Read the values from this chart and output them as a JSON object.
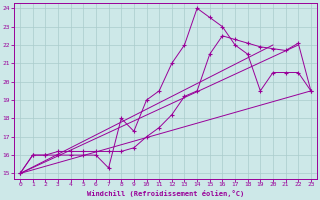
{
  "xlabel": "Windchill (Refroidissement éolien,°C)",
  "bg_color": "#cde8e8",
  "grid_color": "#aacccc",
  "line_color": "#990099",
  "xlim": [
    -0.5,
    23.5
  ],
  "ylim": [
    14.7,
    24.3
  ],
  "xticks": [
    0,
    1,
    2,
    3,
    4,
    5,
    6,
    7,
    8,
    9,
    10,
    11,
    12,
    13,
    14,
    15,
    16,
    17,
    18,
    19,
    20,
    21,
    22,
    23
  ],
  "yticks": [
    15,
    16,
    17,
    18,
    19,
    20,
    21,
    22,
    23,
    24
  ],
  "line1_x": [
    0,
    1,
    2,
    3,
    4,
    5,
    6,
    7,
    8,
    9,
    10,
    11,
    12,
    13,
    14,
    15,
    16,
    17,
    18,
    19,
    20,
    21,
    22,
    23
  ],
  "line1_y": [
    15,
    16,
    16,
    16,
    16,
    16,
    16,
    15.3,
    18,
    17.3,
    19,
    19.5,
    21,
    22,
    24,
    23.5,
    23,
    22,
    21.5,
    19.5,
    20.5,
    20.5,
    20.5,
    19.5
  ],
  "line2_x": [
    0,
    1,
    2,
    3,
    4,
    5,
    6,
    7,
    8,
    9,
    10,
    11,
    12,
    13,
    14,
    15,
    16,
    17,
    18,
    19,
    20,
    21,
    22,
    23
  ],
  "line2_y": [
    15,
    16,
    16,
    16.2,
    16.2,
    16.2,
    16.2,
    16.2,
    16.2,
    16.4,
    17,
    17.5,
    18.2,
    19.2,
    19.5,
    21.5,
    22.5,
    22.3,
    22.1,
    21.9,
    21.8,
    21.7,
    22.1,
    19.5
  ],
  "line3_x": [
    0,
    23
  ],
  "line3_y": [
    15,
    19.5
  ],
  "line4_x": [
    0,
    20
  ],
  "line4_y": [
    15,
    22
  ],
  "line5_x": [
    0,
    22
  ],
  "line5_y": [
    15,
    22
  ]
}
